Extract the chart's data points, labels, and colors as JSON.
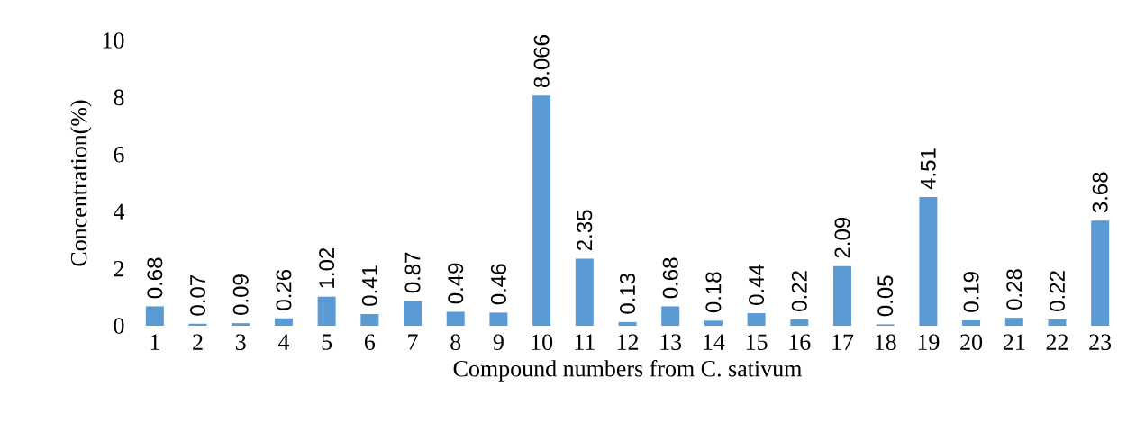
{
  "chart_data": {
    "type": "bar",
    "xlabel": "Compound numbers from C. sativum",
    "ylabel": "Concentration(%)",
    "categories": [
      "1",
      "2",
      "3",
      "4",
      "5",
      "6",
      "7",
      "8",
      "9",
      "10",
      "11",
      "12",
      "13",
      "14",
      "15",
      "16",
      "17",
      "18",
      "19",
      "20",
      "21",
      "22",
      "23"
    ],
    "values": [
      0.68,
      0.07,
      0.09,
      0.26,
      1.02,
      0.41,
      0.87,
      0.49,
      0.46,
      8.066,
      2.35,
      0.13,
      0.68,
      0.18,
      0.44,
      0.22,
      2.09,
      0.05,
      4.51,
      0.19,
      0.28,
      0.22,
      3.68
    ],
    "color": "#5b9bd5",
    "ylim": [
      0,
      10
    ],
    "yticks": [
      0,
      2,
      4,
      6,
      8,
      10
    ],
    "data_labels": true
  }
}
